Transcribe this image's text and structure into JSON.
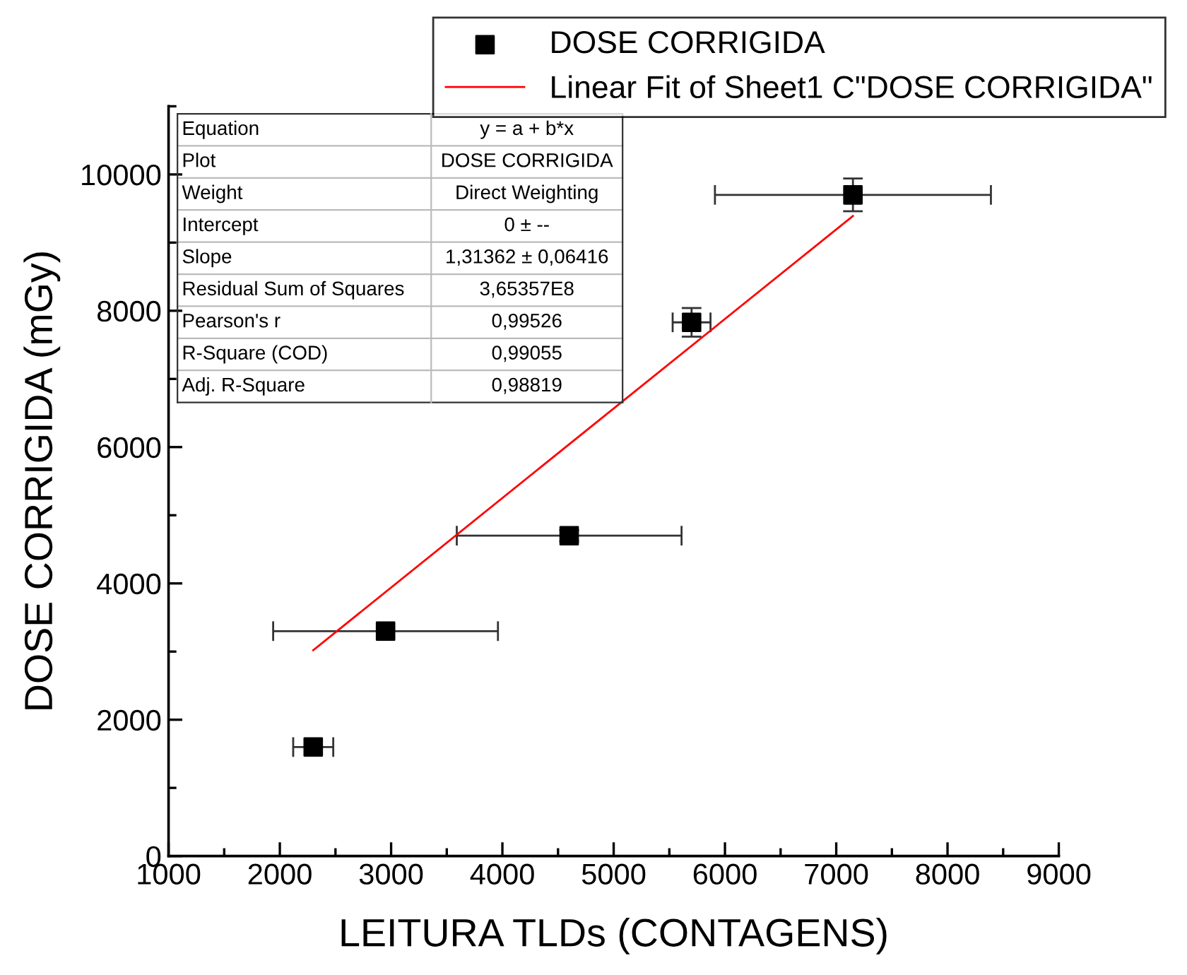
{
  "chart_data": {
    "type": "scatter",
    "xlabel": "LEITURA TLDs (CONTAGENS)",
    "ylabel": "DOSE CORRIGIDA (mGy)",
    "x": [
      2300,
      2950,
      4600,
      5700,
      7150
    ],
    "series": [
      {
        "name": "DOSE CORRIGIDA",
        "color": "#000000",
        "marker": "square",
        "values": [
          1600,
          3300,
          4700,
          7830,
          9700
        ],
        "errors": [
          null,
          null,
          80,
          210,
          240
        ],
        "xerrors": [
          180,
          1010,
          1010,
          170,
          1240
        ]
      },
      {
        "name": "Linear Fit of Sheet1 C\"DOSE CORRIGIDA\"",
        "type": "line",
        "color": "#ff0000",
        "marker": "none",
        "line_style": "solid",
        "x": [
          2300,
          7150
        ],
        "values": [
          3020,
          9390
        ]
      }
    ],
    "xlim": [
      1000,
      9000
    ],
    "xticks": [
      1000,
      2000,
      3000,
      4000,
      5000,
      6000,
      7000,
      8000,
      9000
    ],
    "ylim": [
      0,
      11000
    ],
    "yticks": [
      0,
      2000,
      4000,
      6000,
      8000,
      10000
    ],
    "grid": false,
    "legend": "top right",
    "annotations": [
      "Equation",
      "y = a + b*x",
      "Plot",
      "DOSE CORRIGIDA",
      "Weight",
      "Direct Weighting",
      "Intercept",
      "0 ± --",
      "Slope",
      "1,31362 ± 0,06416",
      "Residual Sum of Squares",
      "3,65357E8",
      "Pearson's r",
      "0,99526",
      "R-Square (COD)",
      "0,99055",
      "Adj. R-Square",
      "0,98819"
    ]
  }
}
